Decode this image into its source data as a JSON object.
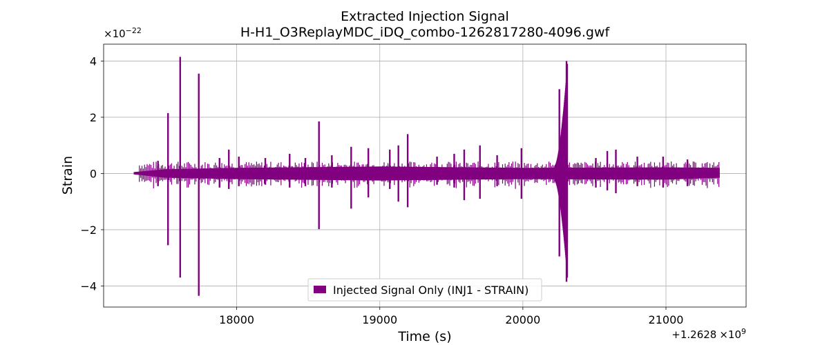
{
  "chart_data": {
    "type": "line",
    "title": "Extracted Injection Signal",
    "subtitle": "H-H1_O3ReplayMDC_iDQ_combo-1262817280-4096.gwf",
    "xlabel": "Time (s)",
    "ylabel": "Strain",
    "x_offset_label": "+1.2628",
    "x_offset_exp_label": "×10",
    "x_offset_exp_value": "9",
    "y_multiplier_base": "×10",
    "y_multiplier_exp": "−22",
    "x_offset": 1262800000,
    "y_scale": 1e-22,
    "xlim": [
      1262817070,
      1262821560
    ],
    "ylim": [
      -4.75,
      4.6
    ],
    "x_ticks": [
      1262818000,
      1262819000,
      1262820000,
      1262821000
    ],
    "x_tick_labels": [
      "18000",
      "19000",
      "20000",
      "21000"
    ],
    "y_ticks": [
      -4,
      -2,
      0,
      2,
      4
    ],
    "y_tick_labels": [
      "−4",
      "−2",
      "0",
      "2",
      "4"
    ],
    "grid": true,
    "legend_position": "lower-center",
    "series": [
      {
        "name": "Injected Signal Only (INJ1 - STRAIN)",
        "color": "#800080",
        "x_range": [
          1262817280,
          1262821376
        ],
        "background_envelope": [
          {
            "x": 1262817280,
            "upper": 0.05,
            "lower": -0.03
          },
          {
            "x": 1262817500,
            "upper": 0.15,
            "lower": -0.15
          },
          {
            "x": 1262818000,
            "upper": 0.2,
            "lower": -0.2
          },
          {
            "x": 1262819000,
            "upper": 0.25,
            "lower": -0.25
          },
          {
            "x": 1262820000,
            "upper": 0.2,
            "lower": -0.2
          },
          {
            "x": 1262821000,
            "upper": 0.22,
            "lower": -0.22
          },
          {
            "x": 1262821376,
            "upper": 0.2,
            "lower": -0.15
          }
        ],
        "bursts": [
          {
            "x": 1262817520,
            "upper": 2.15,
            "lower": -2.55
          },
          {
            "x": 1262817605,
            "upper": 4.15,
            "lower": -3.7
          },
          {
            "x": 1262817735,
            "upper": 3.55,
            "lower": -4.35
          },
          {
            "x": 1262817450,
            "upper": 0.45,
            "lower": -0.45
          },
          {
            "x": 1262817880,
            "upper": 0.55,
            "lower": -0.5
          },
          {
            "x": 1262817945,
            "upper": 0.85,
            "lower": -0.55
          },
          {
            "x": 1262818015,
            "upper": 0.6,
            "lower": -0.45
          },
          {
            "x": 1262818200,
            "upper": 0.55,
            "lower": -0.4
          },
          {
            "x": 1262818370,
            "upper": 0.7,
            "lower": -0.5
          },
          {
            "x": 1262818480,
            "upper": 0.55,
            "lower": -0.45
          },
          {
            "x": 1262818575,
            "upper": 1.85,
            "lower": -1.98
          },
          {
            "x": 1262818665,
            "upper": 0.65,
            "lower": -0.5
          },
          {
            "x": 1262818800,
            "upper": 0.95,
            "lower": -1.25
          },
          {
            "x": 1262818920,
            "upper": 0.9,
            "lower": -0.85
          },
          {
            "x": 1262819070,
            "upper": 0.85,
            "lower": -0.55
          },
          {
            "x": 1262819130,
            "upper": 1.0,
            "lower": -1.0
          },
          {
            "x": 1262819195,
            "upper": 1.4,
            "lower": -1.2
          },
          {
            "x": 1262819400,
            "upper": 0.6,
            "lower": -0.4
          },
          {
            "x": 1262819520,
            "upper": 0.7,
            "lower": -0.5
          },
          {
            "x": 1262819590,
            "upper": 0.85,
            "lower": -0.95
          },
          {
            "x": 1262819700,
            "upper": 1.0,
            "lower": -0.9
          },
          {
            "x": 1262819820,
            "upper": 0.65,
            "lower": -0.45
          },
          {
            "x": 1262819990,
            "upper": 0.9,
            "lower": -0.9
          },
          {
            "x": 1262820255,
            "upper": 3.0,
            "lower": -2.95
          },
          {
            "x": 1262820305,
            "upper": 4.0,
            "lower": -3.85
          },
          {
            "x": 1262820510,
            "upper": 0.55,
            "lower": -0.5
          },
          {
            "x": 1262820590,
            "upper": 0.8,
            "lower": -0.6
          },
          {
            "x": 1262820650,
            "upper": 0.85,
            "lower": -0.7
          },
          {
            "x": 1262820800,
            "upper": 0.6,
            "lower": -0.45
          },
          {
            "x": 1262820980,
            "upper": 0.6,
            "lower": -0.5
          },
          {
            "x": 1262821150,
            "upper": 0.5,
            "lower": -0.45
          }
        ],
        "chirp": {
          "x_start": 1262820225,
          "x_end": 1262820312,
          "amp_start": 0.3,
          "amp_end": 3.9
        }
      }
    ]
  }
}
